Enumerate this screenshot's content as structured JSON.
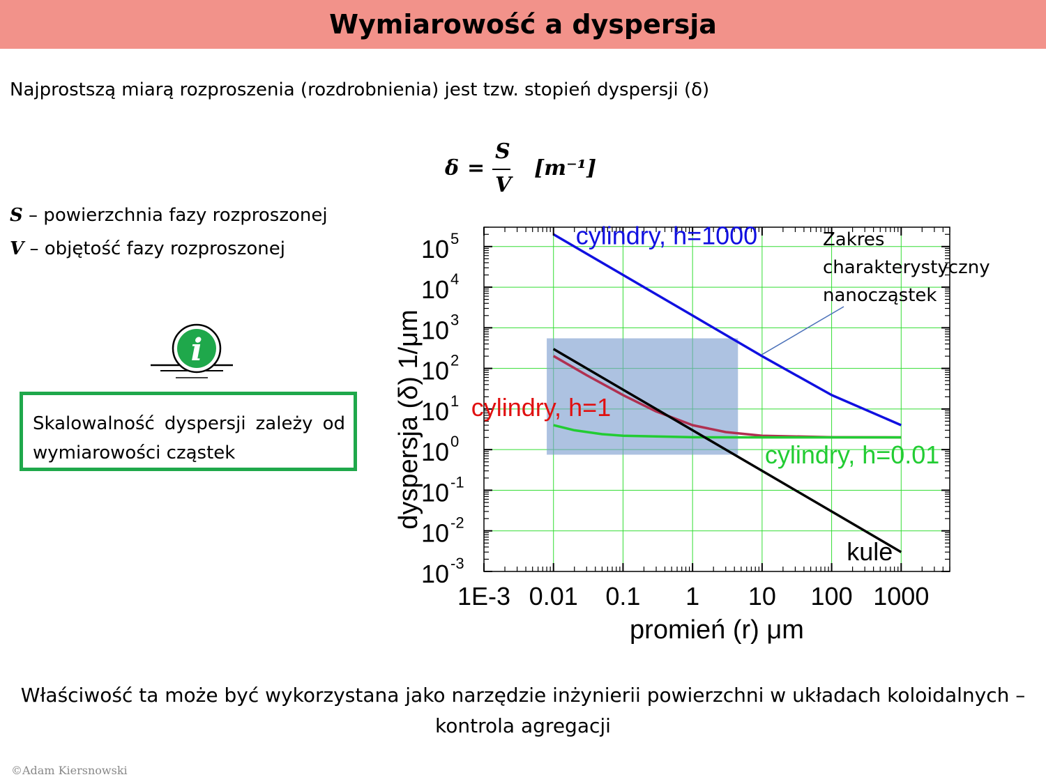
{
  "title": "Wymiarowość a dyspersja",
  "intro": "Najprostszą miarą rozproszenia (rozdrobnienia) jest tzw. stopień dyspersji (δ)",
  "formula": {
    "lhs": "δ",
    "eq": "=",
    "num": "S",
    "den": "V",
    "unit": "[m⁻¹]"
  },
  "definitions": [
    {
      "symbol": "S",
      "text": " – powierzchnia fazy rozproszonej"
    },
    {
      "symbol": "V",
      "text": " – objętość fazy rozproszonej"
    }
  ],
  "info_box": "Skalowalność dyspersji zależy od wymiarowości cząstek",
  "bottom_text": "Właściwość ta może być wykorzystana jako narzędzie inżynierii powierzchni w układach koloidalnych – kontrola agregacji",
  "copyright": "©Adam Kiersnowski",
  "colors": {
    "title_bar": "#f2928a",
    "info_border": "#1fa84b",
    "info_icon": "#1fa84b",
    "grid": "#33dd33",
    "nano_range": "#7b9ccf"
  },
  "chart_data": {
    "type": "line",
    "xlabel": "promień  (r) μm",
    "ylabel": "dyspersja (δ) 1/μm",
    "x_scale": "log",
    "y_scale": "log",
    "xlim": [
      0.001,
      5000
    ],
    "ylim": [
      0.001,
      300000
    ],
    "x_ticks": [
      0.001,
      0.01,
      0.1,
      1,
      10,
      100,
      1000
    ],
    "x_tick_labels": [
      "1E-3",
      "0.01",
      "0.1",
      "1",
      "10",
      "100",
      "1000"
    ],
    "y_ticks": [
      0.001,
      0.01,
      0.1,
      1,
      10,
      100,
      1000,
      10000,
      100000
    ],
    "y_tick_labels": [
      {
        "base": "10",
        "exp": "-3"
      },
      {
        "base": "10",
        "exp": "-2"
      },
      {
        "base": "10",
        "exp": "-1"
      },
      {
        "base": "10",
        "exp": "0"
      },
      {
        "base": "10",
        "exp": "1"
      },
      {
        "base": "10",
        "exp": "2"
      },
      {
        "base": "10",
        "exp": "3"
      },
      {
        "base": "10",
        "exp": "4"
      },
      {
        "base": "10",
        "exp": "5"
      }
    ],
    "grid": true,
    "series": [
      {
        "name": "cylindry, h=1000",
        "color": "#1010e0",
        "x": [
          0.01,
          0.1,
          1,
          10,
          100,
          1000
        ],
        "y": [
          200000,
          20000,
          2000,
          200,
          22,
          4
        ]
      },
      {
        "name": "cylindry, h=1",
        "color": "#b03050",
        "x": [
          0.01,
          0.03,
          0.1,
          0.3,
          1,
          3,
          10,
          100,
          1000
        ],
        "y": [
          202,
          68,
          22,
          8.7,
          4,
          2.7,
          2.2,
          2.02,
          2.0
        ]
      },
      {
        "name": "cylindry, h=0.01",
        "color": "#22cc33",
        "x": [
          0.01,
          0.02,
          0.05,
          0.1,
          1,
          10,
          100,
          1000
        ],
        "y": [
          4,
          3,
          2.4,
          2.2,
          2.02,
          2.0,
          2.0,
          2.0
        ]
      },
      {
        "name": "kule",
        "color": "#000000",
        "x": [
          0.01,
          0.1,
          1,
          10,
          100,
          1000
        ],
        "y": [
          300,
          30,
          3,
          0.3,
          0.03,
          0.003
        ]
      }
    ],
    "highlight": {
      "label": "Zakres charakterystyczny nanocząstek",
      "x_range": [
        0.008,
        4.5
      ],
      "y_range": [
        0.75,
        550
      ]
    }
  }
}
